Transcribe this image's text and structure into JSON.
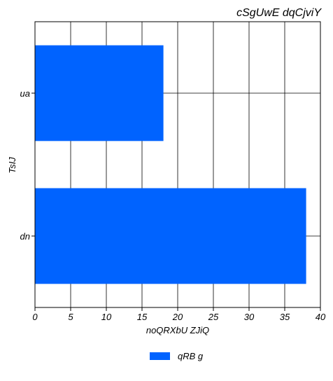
{
  "chart_data": {
    "type": "bar",
    "orientation": "horizontal",
    "title": "cSgUwE dqCjviY",
    "xlabel": "noQRXbU ZJiQ",
    "ylabel": "TsIJ",
    "categories": [
      "ua",
      "dn"
    ],
    "series": [
      {
        "name": "qRB g",
        "values": [
          18,
          38
        ],
        "color": "#0063ff"
      }
    ],
    "xlim": [
      0,
      40
    ],
    "xticks": [
      "0",
      "5",
      "10",
      "15",
      "20",
      "25",
      "30",
      "35",
      "40"
    ],
    "grid": true,
    "legend_position": "bottom-center"
  }
}
